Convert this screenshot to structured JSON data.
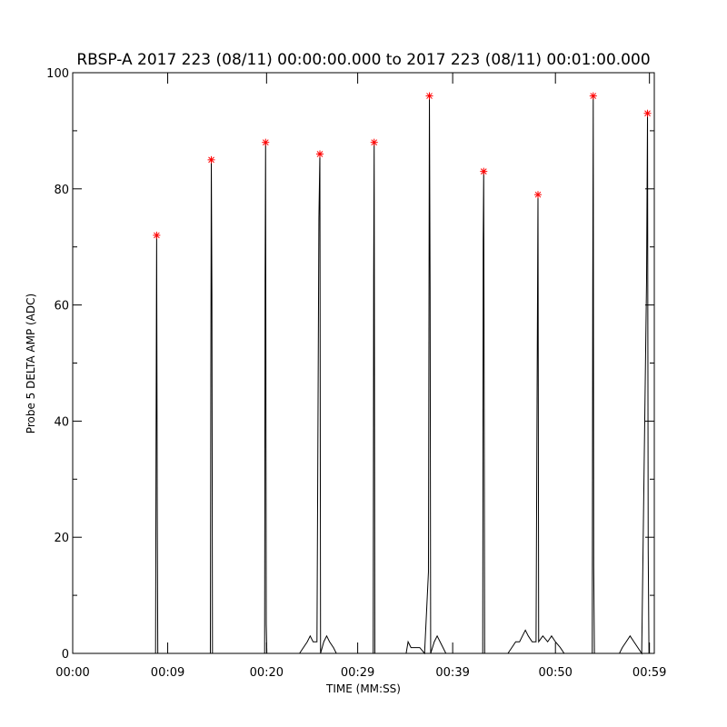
{
  "chart_data": {
    "type": "line",
    "title": "RBSP-A 2017 223 (08/11) 00:00:00.000 to 2017 223 (08/11) 00:01:00.000",
    "xlabel": "TIME (MM:SS)",
    "ylabel": "Probe 5 DELTA AMP (ADC)",
    "xlim": [
      0,
      60
    ],
    "ylim": [
      0,
      100
    ],
    "x_tick_values": [
      0,
      9.8,
      20,
      29.4,
      39.2,
      49.8,
      59.5
    ],
    "x_tick_labels": [
      "00:00",
      "00:09",
      "00:20",
      "00:29",
      "00:39",
      "00:50",
      "00:59"
    ],
    "y_tick_values": [
      0,
      20,
      40,
      60,
      80,
      100
    ],
    "y_tick_labels": [
      "0",
      "20",
      "40",
      "60",
      "80",
      "100"
    ],
    "grid": false,
    "colors": {
      "line": "#000000",
      "peak_marker": "#ff0000",
      "axes": "#000000",
      "background": "#ffffff"
    },
    "peaks": [
      {
        "x": 8.66,
        "y": 72
      },
      {
        "x": 14.3,
        "y": 85
      },
      {
        "x": 19.9,
        "y": 88
      },
      {
        "x": 25.5,
        "y": 86
      },
      {
        "x": 31.1,
        "y": 88
      },
      {
        "x": 36.8,
        "y": 96
      },
      {
        "x": 42.4,
        "y": 83
      },
      {
        "x": 48.0,
        "y": 79
      },
      {
        "x": 53.7,
        "y": 96
      },
      {
        "x": 59.3,
        "y": 93
      }
    ],
    "series": [
      {
        "points": [
          [
            0,
            0
          ],
          [
            8.55,
            0
          ],
          [
            8.6,
            36
          ],
          [
            8.66,
            72
          ],
          [
            8.72,
            27
          ],
          [
            8.78,
            0
          ],
          [
            14.2,
            0
          ],
          [
            14.25,
            47
          ],
          [
            14.3,
            85
          ],
          [
            14.36,
            62
          ],
          [
            14.42,
            0
          ],
          [
            19.8,
            0
          ],
          [
            19.85,
            64
          ],
          [
            19.9,
            88
          ],
          [
            19.97,
            5
          ],
          [
            20.03,
            0
          ],
          [
            23.4,
            0
          ],
          [
            23.8,
            1
          ],
          [
            24.2,
            2
          ],
          [
            24.5,
            3
          ],
          [
            24.8,
            2
          ],
          [
            25.2,
            2
          ],
          [
            25.4,
            75
          ],
          [
            25.5,
            86
          ],
          [
            25.57,
            0
          ],
          [
            25.9,
            2
          ],
          [
            26.2,
            3
          ],
          [
            26.5,
            2
          ],
          [
            26.9,
            1
          ],
          [
            27.2,
            0
          ],
          [
            31.0,
            0
          ],
          [
            31.05,
            65
          ],
          [
            31.1,
            88
          ],
          [
            31.17,
            0
          ],
          [
            34.4,
            0
          ],
          [
            34.6,
            2
          ],
          [
            34.9,
            1
          ],
          [
            35.4,
            1
          ],
          [
            35.8,
            1
          ],
          [
            36.3,
            0
          ],
          [
            36.7,
            14
          ],
          [
            36.8,
            96
          ],
          [
            36.87,
            63
          ],
          [
            36.93,
            0
          ],
          [
            37.3,
            2
          ],
          [
            37.6,
            3
          ],
          [
            37.9,
            2
          ],
          [
            38.2,
            1
          ],
          [
            38.5,
            0
          ],
          [
            42.3,
            0
          ],
          [
            42.35,
            71
          ],
          [
            42.4,
            83
          ],
          [
            42.45,
            43
          ],
          [
            42.5,
            0
          ],
          [
            44.9,
            0
          ],
          [
            45.3,
            1
          ],
          [
            45.7,
            2
          ],
          [
            46.1,
            2
          ],
          [
            46.4,
            3
          ],
          [
            46.7,
            4
          ],
          [
            47.0,
            3
          ],
          [
            47.4,
            2
          ],
          [
            47.8,
            2
          ],
          [
            47.9,
            41
          ],
          [
            48.0,
            79
          ],
          [
            48.07,
            2
          ],
          [
            48.5,
            3
          ],
          [
            49.0,
            2
          ],
          [
            49.4,
            3
          ],
          [
            49.8,
            2
          ],
          [
            50.3,
            1
          ],
          [
            50.7,
            0
          ],
          [
            53.6,
            0
          ],
          [
            53.65,
            63
          ],
          [
            53.7,
            96
          ],
          [
            53.75,
            15
          ],
          [
            53.82,
            0
          ],
          [
            56.4,
            0
          ],
          [
            56.7,
            1
          ],
          [
            57.1,
            2
          ],
          [
            57.5,
            3
          ],
          [
            57.9,
            2
          ],
          [
            58.3,
            1
          ],
          [
            58.7,
            0
          ],
          [
            59.2,
            64
          ],
          [
            59.3,
            93
          ],
          [
            59.37,
            18
          ],
          [
            59.45,
            0
          ],
          [
            60,
            0
          ]
        ]
      }
    ]
  }
}
